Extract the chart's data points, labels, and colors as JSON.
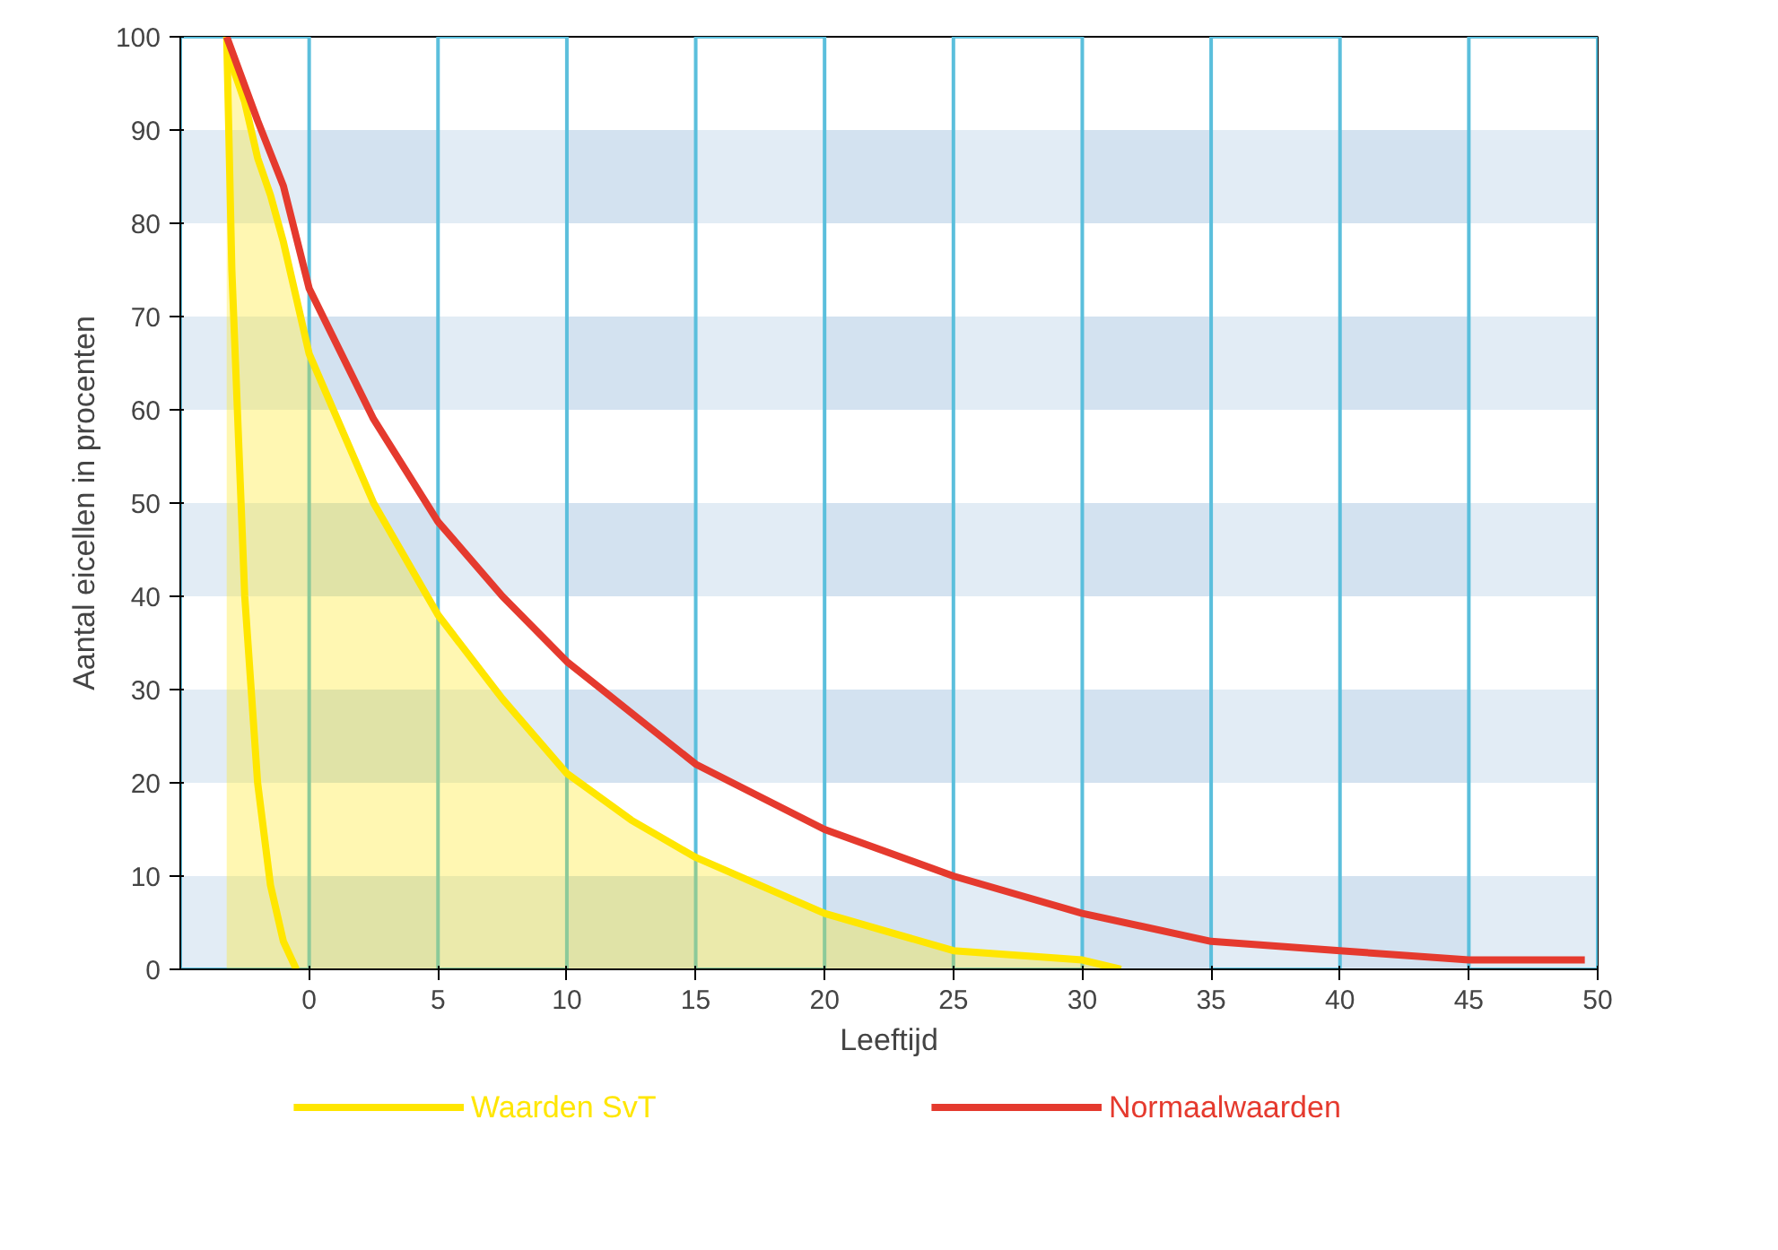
{
  "chart_data": {
    "type": "line",
    "xlabel": "Leeftijd",
    "ylabel": "Aantal eicellen in procenten",
    "xlim": [
      -5,
      50
    ],
    "ylim": [
      0,
      100
    ],
    "xticks": [
      0,
      5,
      10,
      15,
      20,
      25,
      30,
      35,
      40,
      45,
      50
    ],
    "yticks": [
      0,
      10,
      20,
      30,
      40,
      50,
      60,
      70,
      80,
      90,
      100
    ],
    "grid": false,
    "legend": "bottom",
    "line_style": "solid",
    "marker": "none",
    "bands": [
      {
        "axis": "y",
        "from": 0,
        "to": 10,
        "color": "#d3e2f0"
      },
      {
        "axis": "y",
        "from": 20,
        "to": 30,
        "color": "#d3e2f0"
      },
      {
        "axis": "y",
        "from": 40,
        "to": 50,
        "color": "#d3e2f0"
      },
      {
        "axis": "y",
        "from": 60,
        "to": 70,
        "color": "#d3e2f0"
      },
      {
        "axis": "y",
        "from": 80,
        "to": 90,
        "color": "#d3e2f0"
      },
      {
        "axis": "x",
        "from": -5,
        "to": 0,
        "color": "#5bbfdc"
      },
      {
        "axis": "x",
        "from": 5,
        "to": 10,
        "color": "#5bbfdc"
      },
      {
        "axis": "x",
        "from": 15,
        "to": 20,
        "color": "#5bbfdc"
      },
      {
        "axis": "x",
        "from": 25,
        "to": 30,
        "color": "#5bbfdc"
      },
      {
        "axis": "x",
        "from": 35,
        "to": 40,
        "color": "#5bbfdc"
      },
      {
        "axis": "x",
        "from": 45,
        "to": 50,
        "color": "#5bbfdc"
      }
    ],
    "series": [
      {
        "name": "Waarden SvT",
        "type": "area",
        "color": "#ffe600",
        "x": [
          -3.2,
          -3,
          -2.5,
          -2,
          -1.5,
          -1,
          -0.5,
          0,
          2.5,
          5,
          7.5,
          10,
          12.5,
          15,
          20,
          25,
          30,
          31.5
        ],
        "values": [
          100,
          97,
          93,
          87,
          83,
          78,
          72,
          66,
          50,
          38,
          29,
          21,
          16,
          12,
          6,
          2,
          1,
          0
        ]
      },
      {
        "color": "#ffe600",
        "x": [
          -3.2,
          -3,
          -2.5,
          -2,
          -1.5,
          -1,
          -0.5
        ],
        "values": [
          100,
          75,
          40,
          20,
          9,
          3,
          0
        ]
      },
      {
        "name": "Normaalwaarden",
        "color": "#e53a2e",
        "x": [
          -3.2,
          -2,
          -1,
          0,
          2.5,
          5,
          7.5,
          10,
          15,
          20,
          25,
          30,
          35,
          40,
          45,
          49.5
        ],
        "values": [
          100,
          91,
          84,
          73,
          59,
          48,
          40,
          33,
          22,
          15,
          10,
          6,
          3,
          2,
          1,
          1
        ]
      }
    ]
  }
}
